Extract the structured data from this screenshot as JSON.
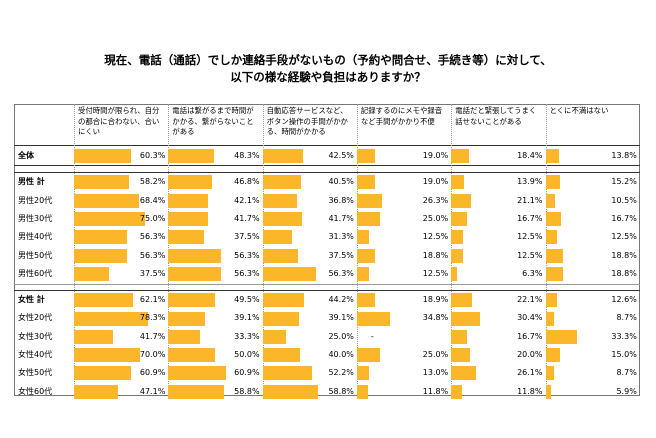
{
  "title_lines": [
    "現在、電話（通話）でしか連絡手段がないもの（予約や問合せ、手続き等）に対して、",
    "以下の様な経験や負担はありますか？"
  ],
  "chart_data": {
    "type": "bar",
    "title": "現在、電話（通話）でしか連絡手段がないもの（予約や問合せ、手続き等）に対して、以下の様な経験や負担はありますか？",
    "unit": "%",
    "xlim": [
      0,
      100
    ],
    "columns": [
      "受付時間が限られ、自分の都合に合わない、合いにくい",
      "電話は繋がるまで時間がかかる、繋がらないことがある",
      "自動応答サービスなど、ボタン操作の手間がかかる、時間がかかる",
      "記録するのにメモや録音など手間がかかり不便",
      "電話だと緊張してうまく話せないことがある",
      "とくに不満はない"
    ],
    "rows": [
      {
        "label": "全体",
        "bold": true,
        "values": [
          "60.3%",
          "48.3%",
          "42.5%",
          "19.0%",
          "18.4%",
          "13.8%"
        ]
      },
      {
        "label": "男性 計",
        "bold": true,
        "values": [
          "58.2%",
          "46.8%",
          "40.5%",
          "19.0%",
          "13.9%",
          "15.2%"
        ]
      },
      {
        "label": "男性20代",
        "bold": false,
        "values": [
          "68.4%",
          "42.1%",
          "36.8%",
          "26.3%",
          "21.1%",
          "10.5%"
        ]
      },
      {
        "label": "男性30代",
        "bold": false,
        "values": [
          "75.0%",
          "41.7%",
          "41.7%",
          "25.0%",
          "16.7%",
          "16.7%"
        ]
      },
      {
        "label": "男性40代",
        "bold": false,
        "values": [
          "56.3%",
          "37.5%",
          "31.3%",
          "12.5%",
          "12.5%",
          "12.5%"
        ]
      },
      {
        "label": "男性50代",
        "bold": false,
        "values": [
          "56.3%",
          "56.3%",
          "37.5%",
          "18.8%",
          "12.5%",
          "18.8%"
        ]
      },
      {
        "label": "男性60代",
        "bold": false,
        "values": [
          "37.5%",
          "56.3%",
          "56.3%",
          "12.5%",
          "6.3%",
          "18.8%"
        ]
      },
      {
        "label": "女性 計",
        "bold": true,
        "values": [
          "62.1%",
          "49.5%",
          "44.2%",
          "18.9%",
          "22.1%",
          "12.6%"
        ]
      },
      {
        "label": "女性20代",
        "bold": false,
        "values": [
          "78.3%",
          "39.1%",
          "39.1%",
          "34.8%",
          "30.4%",
          "8.7%"
        ]
      },
      {
        "label": "女性30代",
        "bold": false,
        "values": [
          "41.7%",
          "33.3%",
          "25.0%",
          "-",
          "16.7%",
          "33.3%"
        ]
      },
      {
        "label": "女性40代",
        "bold": false,
        "values": [
          "70.0%",
          "50.0%",
          "40.0%",
          "25.0%",
          "20.0%",
          "15.0%"
        ]
      },
      {
        "label": "女性50代",
        "bold": false,
        "values": [
          "60.9%",
          "60.9%",
          "52.2%",
          "13.0%",
          "26.1%",
          "8.7%"
        ]
      },
      {
        "label": "女性60代",
        "bold": false,
        "values": [
          "47.1%",
          "58.8%",
          "58.8%",
          "11.8%",
          "11.8%",
          "5.9%"
        ]
      }
    ],
    "bar_color": "#fcb62a"
  }
}
